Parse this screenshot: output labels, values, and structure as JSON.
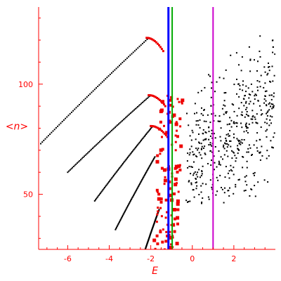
{
  "chart_data": {
    "type": "scatter",
    "title": "",
    "xlabel": "E",
    "ylabel": "<n>",
    "xlim": [
      -7.4,
      4.0
    ],
    "ylim": [
      25,
      135
    ],
    "x_ticks": [
      -6,
      -4,
      -2,
      0,
      2
    ],
    "y_ticks": [
      50,
      100
    ],
    "grid": false,
    "colors": {
      "axes": "#ff0000",
      "points_black": "#000000",
      "points_red": "#ee0000",
      "line_blue": "#0000ff",
      "line_green": "#00aa00",
      "line_magenta": "#cc00cc"
    },
    "vertical_lines": [
      {
        "x": -1.15,
        "color": "#0000ff",
        "width": 3
      },
      {
        "x": -0.97,
        "color": "#00aa00",
        "width": 2
      },
      {
        "x": 1.0,
        "color": "#cc00cc",
        "width": 2
      }
    ],
    "black_arcs": [
      {
        "x_start": -7.3,
        "y_start": 73,
        "x_end": -2.1,
        "y_end": 121
      },
      {
        "x_start": -6.0,
        "y_start": 60,
        "x_end": -2.0,
        "y_end": 95
      },
      {
        "x_start": -4.7,
        "y_start": 47,
        "x_end": -1.9,
        "y_end": 81
      },
      {
        "x_start": -3.7,
        "y_start": 34,
        "x_end": -1.8,
        "y_end": 67
      },
      {
        "x_start": -2.3,
        "y_start": 24,
        "x_end": -1.6,
        "y_end": 43
      },
      {
        "x_start": -1.85,
        "y_start": 13,
        "x_end": -1.5,
        "y_end": 25
      }
    ],
    "red_ridges": [
      {
        "x_start": -2.2,
        "y_start": 121,
        "x_end": -1.4,
        "y_end": 115
      },
      {
        "x_start": -2.1,
        "y_start": 95,
        "x_end": -1.3,
        "y_end": 90
      },
      {
        "x_start": -2.0,
        "y_start": 81,
        "x_end": -1.2,
        "y_end": 76
      }
    ],
    "red_cluster": {
      "x_min": -1.6,
      "x_max": -0.2,
      "y_min": 25,
      "y_max": 95,
      "count": 120
    },
    "black_cloud": {
      "x_min": -0.3,
      "x_max": 4.0,
      "y_min": 45,
      "y_max": 135,
      "count": 500
    }
  }
}
